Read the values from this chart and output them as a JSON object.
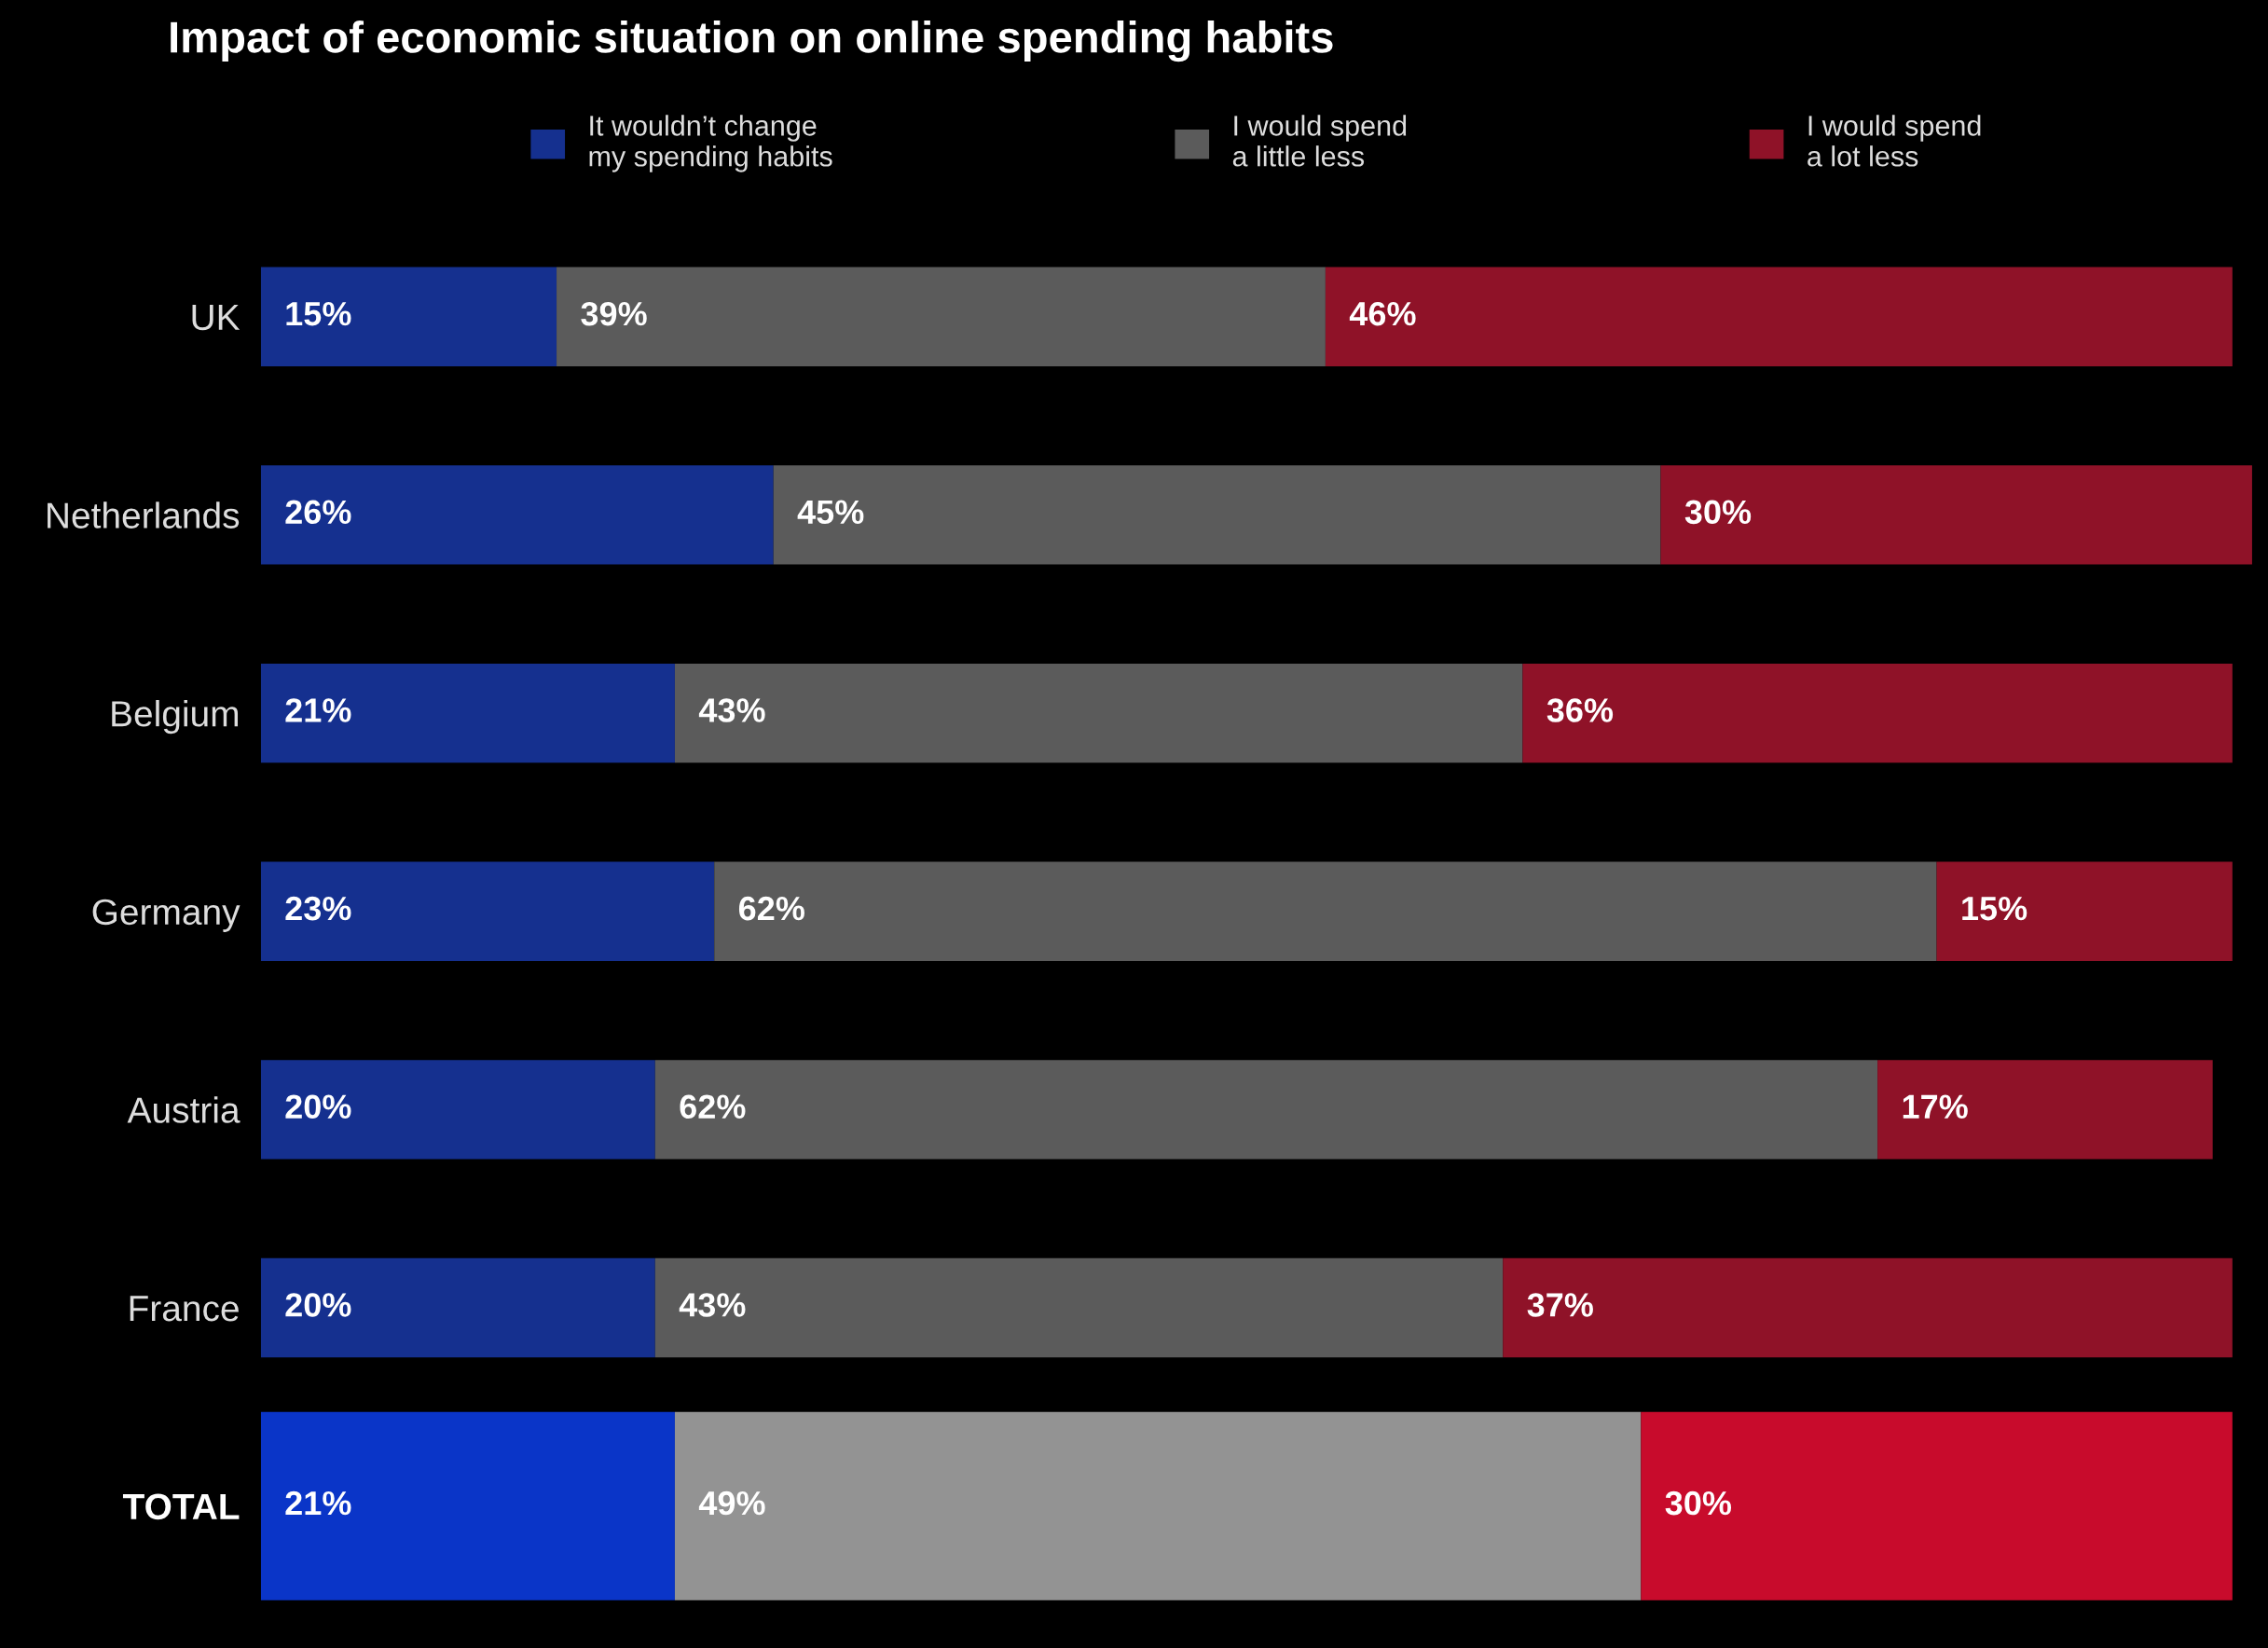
{
  "chart_data": {
    "type": "bar",
    "orientation": "horizontal",
    "stacked": true,
    "title": "Impact of economic situation on online spending habits",
    "categories": [
      "UK",
      "Netherlands",
      "Belgium",
      "Germany",
      "Austria",
      "France",
      "TOTAL"
    ],
    "series": [
      {
        "name": "It wouldn’t change\nmy spending habits",
        "color": "#15308f",
        "colors": [
          "#15308f",
          "#15308f",
          "#15308f",
          "#15308f",
          "#15308f",
          "#15308f",
          "#0a35c8"
        ],
        "values": [
          15,
          26,
          21,
          23,
          20,
          20,
          21
        ],
        "value_labels": [
          "15%",
          "26%",
          "21%",
          "23%",
          "20%",
          "20%",
          "21%"
        ]
      },
      {
        "name": "I would spend\na little less",
        "color": "#5b5b5b",
        "colors": [
          "#5b5b5b",
          "#5b5b5b",
          "#5b5b5b",
          "#5b5b5b",
          "#5b5b5b",
          "#5b5b5b",
          "#939393"
        ],
        "values": [
          39,
          45,
          43,
          62,
          62,
          43,
          49
        ],
        "value_labels": [
          "39%",
          "45%",
          "43%",
          "62%",
          "62%",
          "43%",
          "49%"
        ]
      },
      {
        "name": "I would spend\na lot less",
        "color": "#8f1228",
        "colors": [
          "#8f1228",
          "#8f1228",
          "#8f1228",
          "#8f1228",
          "#8f1228",
          "#8f1228",
          "#c80b2c"
        ],
        "values": [
          46,
          30,
          36,
          15,
          17,
          37,
          30
        ],
        "value_labels": [
          "46%",
          "30%",
          "36%",
          "15%",
          "17%",
          "37%",
          "30%"
        ]
      }
    ],
    "legend": "top",
    "tick_labels": "y"
  }
}
